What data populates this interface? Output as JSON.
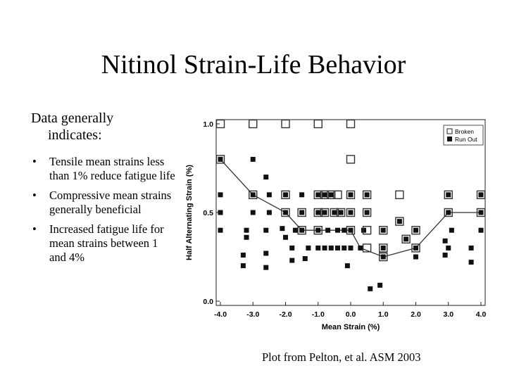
{
  "slide": {
    "title": "Nitinol Strain-Life Behavior",
    "intro_line1": "Data generally",
    "intro_line2": "indicates:",
    "bullets": [
      "Tensile mean strains less than 1% reduce fatigue life",
      "Compressive mean strains generally beneficial",
      "Increased fatigue life for mean strains between 1 and 4%"
    ],
    "caption": "Plot from Pelton, et al. ASM 2003"
  },
  "chart_data": {
    "type": "scatter",
    "xlabel": "Mean Strain (%)",
    "ylabel": "Half Alternating Strain (%)",
    "xlim": [
      -4.0,
      4.0
    ],
    "ylim": [
      0.0,
      1.0
    ],
    "xticks": [
      "-4.0",
      "-3.0",
      "-2.0",
      "-1.0",
      "0.0",
      "1.0",
      "2.0",
      "3.0",
      "4.0"
    ],
    "yticks": [
      "0.0",
      "0.5",
      "1.0"
    ],
    "legend_position": "top-right",
    "series": [
      {
        "name": "Broken",
        "marker": "open-square",
        "points": [
          [
            -4.0,
            1.0
          ],
          [
            -3.0,
            1.0
          ],
          [
            -2.0,
            1.0
          ],
          [
            -1.0,
            1.0
          ],
          [
            0.0,
            1.0
          ],
          [
            -4.0,
            0.8
          ],
          [
            0.0,
            0.8
          ],
          [
            -3.0,
            0.6
          ],
          [
            -2.0,
            0.6
          ],
          [
            -1.0,
            0.6
          ],
          [
            -0.8,
            0.6
          ],
          [
            -0.6,
            0.6
          ],
          [
            -0.4,
            0.6
          ],
          [
            0.0,
            0.6
          ],
          [
            0.5,
            0.6
          ],
          [
            1.5,
            0.6
          ],
          [
            3.0,
            0.6
          ],
          [
            4.0,
            0.6
          ],
          [
            -2.0,
            0.5
          ],
          [
            -1.5,
            0.5
          ],
          [
            -1.0,
            0.5
          ],
          [
            -0.8,
            0.5
          ],
          [
            -0.5,
            0.5
          ],
          [
            -0.3,
            0.5
          ],
          [
            0.0,
            0.5
          ],
          [
            0.5,
            0.5
          ],
          [
            3.0,
            0.5
          ],
          [
            4.0,
            0.5
          ],
          [
            1.5,
            0.45
          ],
          [
            -1.5,
            0.4
          ],
          [
            -1.0,
            0.4
          ],
          [
            0.0,
            0.4
          ],
          [
            0.5,
            0.4
          ],
          [
            1.0,
            0.4
          ],
          [
            2.0,
            0.4
          ],
          [
            1.7,
            0.35
          ],
          [
            0.5,
            0.3
          ],
          [
            1.0,
            0.3
          ],
          [
            2.0,
            0.3
          ],
          [
            1.0,
            0.25
          ]
        ]
      },
      {
        "name": "Run Out",
        "marker": "filled-square",
        "points": [
          [
            -4.0,
            0.8
          ],
          [
            -3.0,
            0.8
          ],
          [
            -2.6,
            0.7
          ],
          [
            -4.0,
            0.6
          ],
          [
            -3.0,
            0.6
          ],
          [
            -2.5,
            0.6
          ],
          [
            -2.0,
            0.6
          ],
          [
            -1.5,
            0.6
          ],
          [
            -1.0,
            0.6
          ],
          [
            -0.8,
            0.6
          ],
          [
            -0.6,
            0.6
          ],
          [
            0.0,
            0.6
          ],
          [
            0.5,
            0.6
          ],
          [
            3.0,
            0.6
          ],
          [
            4.0,
            0.6
          ],
          [
            -4.0,
            0.5
          ],
          [
            -3.0,
            0.5
          ],
          [
            -2.5,
            0.5
          ],
          [
            -2.0,
            0.5
          ],
          [
            -1.5,
            0.5
          ],
          [
            -1.0,
            0.5
          ],
          [
            -0.8,
            0.5
          ],
          [
            -0.5,
            0.5
          ],
          [
            -0.3,
            0.5
          ],
          [
            0.0,
            0.5
          ],
          [
            0.5,
            0.5
          ],
          [
            3.0,
            0.5
          ],
          [
            4.0,
            0.5
          ],
          [
            1.5,
            0.45
          ],
          [
            -4.0,
            0.4
          ],
          [
            -3.2,
            0.4
          ],
          [
            -2.6,
            0.4
          ],
          [
            -2.1,
            0.41
          ],
          [
            -1.7,
            0.4
          ],
          [
            -1.5,
            0.4
          ],
          [
            -1.0,
            0.4
          ],
          [
            -0.7,
            0.4
          ],
          [
            -0.4,
            0.4
          ],
          [
            -0.2,
            0.4
          ],
          [
            0.0,
            0.4
          ],
          [
            0.4,
            0.4
          ],
          [
            1.0,
            0.4
          ],
          [
            2.0,
            0.4
          ],
          [
            3.1,
            0.4
          ],
          [
            4.0,
            0.4
          ],
          [
            1.7,
            0.35
          ],
          [
            -3.2,
            0.36
          ],
          [
            -2.0,
            0.36
          ],
          [
            -1.8,
            0.3
          ],
          [
            -1.3,
            0.3
          ],
          [
            -1.0,
            0.3
          ],
          [
            -0.8,
            0.3
          ],
          [
            -0.6,
            0.3
          ],
          [
            -0.4,
            0.3
          ],
          [
            -0.2,
            0.3
          ],
          [
            0.0,
            0.3
          ],
          [
            0.3,
            0.3
          ],
          [
            1.0,
            0.3
          ],
          [
            2.0,
            0.3
          ],
          [
            3.0,
            0.3
          ],
          [
            3.7,
            0.3
          ],
          [
            2.9,
            0.34
          ],
          [
            -3.3,
            0.26
          ],
          [
            -2.6,
            0.27
          ],
          [
            -1.8,
            0.23
          ],
          [
            -1.4,
            0.24
          ],
          [
            -0.1,
            0.2
          ],
          [
            1.0,
            0.25
          ],
          [
            2.0,
            0.25
          ],
          [
            2.9,
            0.26
          ],
          [
            3.7,
            0.22
          ],
          [
            -3.3,
            0.2
          ],
          [
            -2.6,
            0.19
          ],
          [
            0.6,
            0.07
          ],
          [
            0.9,
            0.09
          ]
        ]
      },
      {
        "name": "",
        "marker": "line",
        "points": [
          [
            -4.0,
            0.8
          ],
          [
            -3.0,
            0.6
          ],
          [
            -2.0,
            0.5
          ],
          [
            -1.5,
            0.4
          ],
          [
            0.0,
            0.4
          ],
          [
            0.3,
            0.3
          ],
          [
            1.0,
            0.25
          ],
          [
            2.0,
            0.3
          ],
          [
            3.0,
            0.5
          ],
          [
            4.0,
            0.5
          ]
        ]
      }
    ]
  }
}
